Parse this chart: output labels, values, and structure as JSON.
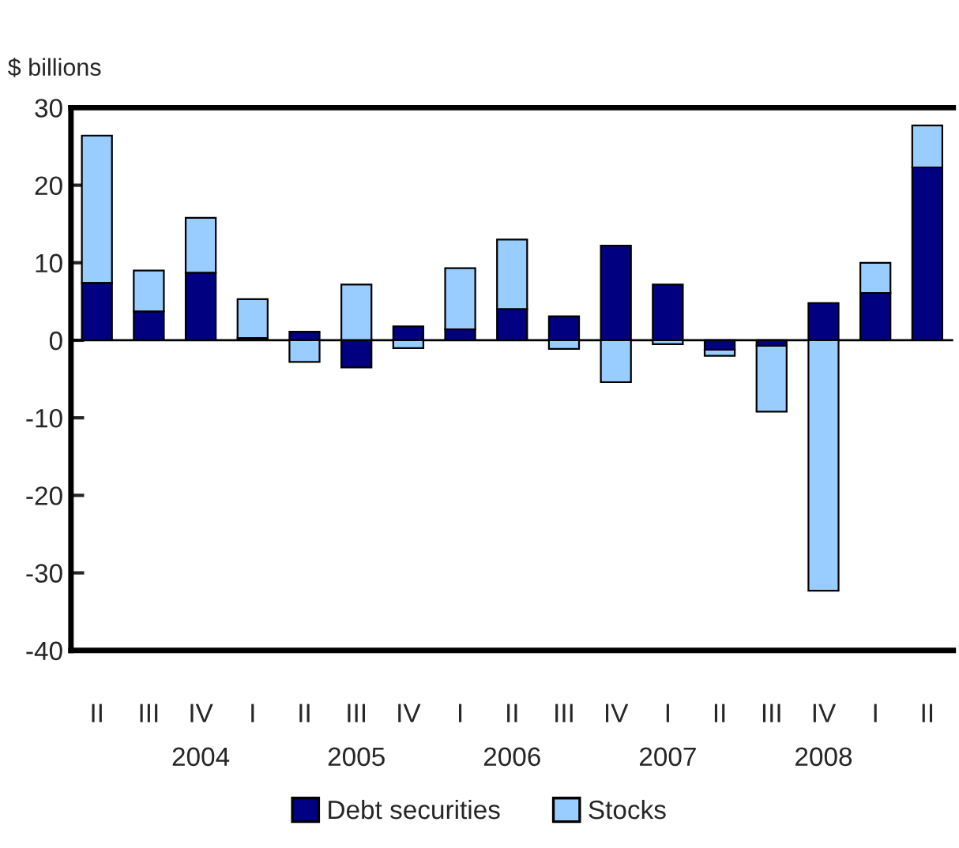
{
  "chart_data": {
    "type": "bar",
    "stacked": true,
    "ylabel": "$ billions",
    "categories": [
      "II",
      "III",
      "IV",
      "I",
      "II",
      "III",
      "IV",
      "I",
      "II",
      "III",
      "IV",
      "I",
      "II",
      "III",
      "IV",
      "I",
      "II"
    ],
    "series": [
      {
        "name": "Debt securities",
        "color": "#000080",
        "values": [
          7.4,
          3.7,
          8.7,
          0.3,
          1.1,
          -3.5,
          1.8,
          1.4,
          4.0,
          3.1,
          12.2,
          7.2,
          -1.2,
          -0.7,
          4.8,
          6.1,
          22.3
        ]
      },
      {
        "name": "Stocks",
        "color": "#99ccff",
        "values": [
          19.0,
          5.3,
          7.1,
          5.0,
          -2.8,
          7.2,
          -1.0,
          7.9,
          9.0,
          -1.1,
          -5.4,
          -0.5,
          -0.8,
          -8.5,
          -32.3,
          3.9,
          5.4
        ]
      }
    ],
    "ylim": [
      -40,
      30
    ],
    "yticks": [
      -40,
      -30,
      -20,
      -10,
      0,
      10,
      20,
      30
    ],
    "ref_lines": [
      {
        "axis": "y",
        "value": 0,
        "color": "#000000"
      }
    ],
    "annotations": [
      "2004",
      "2005",
      "2006",
      "2007",
      "2008"
    ],
    "legend": "bottom",
    "grid": false
  }
}
